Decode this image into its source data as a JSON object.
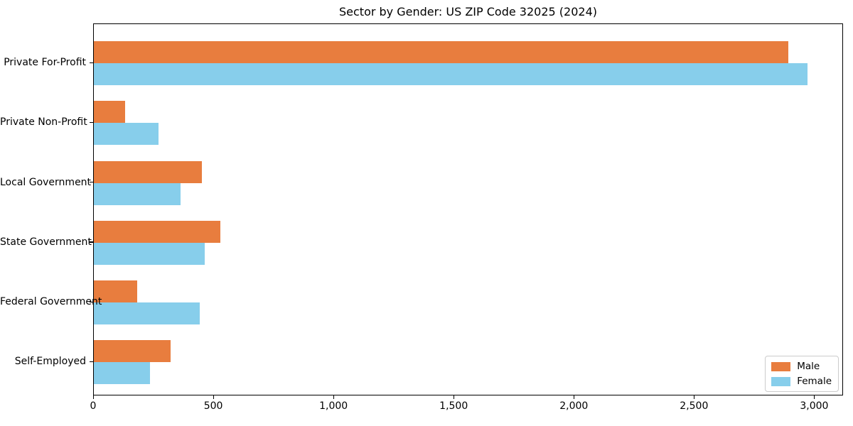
{
  "chart_data": {
    "type": "bar",
    "orientation": "horizontal",
    "title": "Sector by Gender: US ZIP Code 32025 (2024)",
    "categories": [
      "Private For-Profit",
      "Private Non-Profit",
      "Local Government",
      "State Government",
      "Federal Government",
      "Self-Employed"
    ],
    "series": [
      {
        "name": "Male",
        "color": "#e87d3e",
        "values": [
          2890,
          130,
          450,
          525,
          180,
          320
        ]
      },
      {
        "name": "Female",
        "color": "#87ceeb",
        "values": [
          2970,
          270,
          360,
          460,
          440,
          235
        ]
      }
    ],
    "xlabel": "",
    "ylabel": "",
    "xlim": [
      0,
      3120
    ],
    "xticks": [
      0,
      500,
      1000,
      1500,
      2000,
      2500,
      3000
    ],
    "xtick_labels": [
      "0",
      "500",
      "1,000",
      "1,500",
      "2,000",
      "2,500",
      "3,000"
    ],
    "grid": false,
    "legend": {
      "position": "lower right",
      "entries": [
        "Male",
        "Female"
      ]
    },
    "colors": {
      "frame": "#000000",
      "legend_border": "#cccccc",
      "background": "#ffffff",
      "text": "#000000"
    }
  }
}
